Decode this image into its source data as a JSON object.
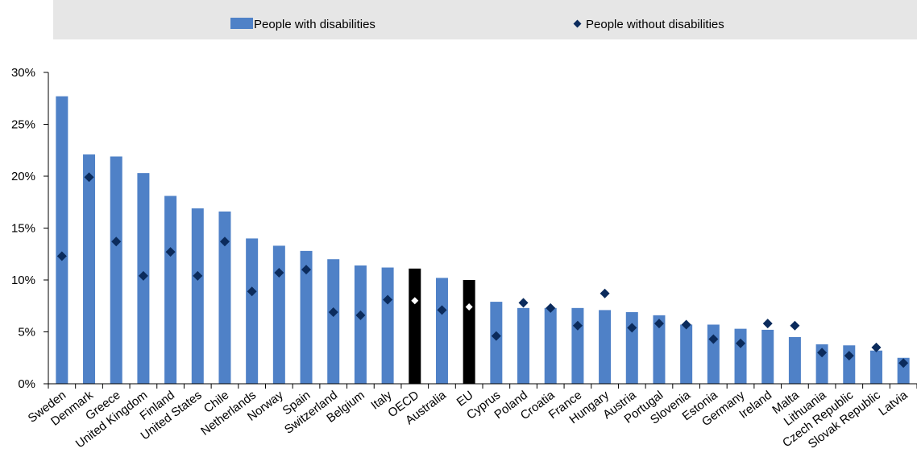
{
  "chart_data": {
    "type": "bar",
    "title": "",
    "xlabel": "",
    "ylabel": "",
    "ylim": [
      0,
      30
    ],
    "y_ticks": [
      "0%",
      "5%",
      "10%",
      "15%",
      "20%",
      "25%",
      "30%"
    ],
    "y_tick_values": [
      0,
      5,
      10,
      15,
      20,
      25,
      30
    ],
    "grid": false,
    "legend_position": "top",
    "categories": [
      "Sweden",
      "Denmark",
      "Greece",
      "United Kingdom",
      "Finland",
      "United States",
      "Chile",
      "Netherlands",
      "Norway",
      "Spain",
      "Switzerland",
      "Belgium",
      "Italy",
      "OECD",
      "Australia",
      "EU",
      "Cyprus",
      "Poland",
      "Croatia",
      "France",
      "Hungary",
      "Austria",
      "Portugal",
      "Slovenia",
      "Estonia",
      "Germany",
      "Ireland",
      "Malta",
      "Lithuania",
      "Czech Republic",
      "Slovak Republic",
      "Latvia"
    ],
    "highlight_categories": [
      "OECD",
      "EU"
    ],
    "series": [
      {
        "name": "People with disabilities",
        "kind": "bar",
        "color": "#4f81c7",
        "highlight_color": "#000000",
        "values": [
          27.7,
          22.1,
          21.9,
          20.3,
          18.1,
          16.9,
          16.6,
          14.0,
          13.3,
          12.8,
          12.0,
          11.4,
          11.2,
          11.1,
          10.2,
          10.0,
          7.9,
          7.3,
          7.3,
          7.3,
          7.1,
          6.9,
          6.6,
          5.7,
          5.7,
          5.3,
          5.2,
          4.5,
          3.8,
          3.7,
          3.2,
          2.5
        ]
      },
      {
        "name": "People without disabilities",
        "kind": "marker",
        "color": "#0b2b5c",
        "highlight_color": "#ffffff",
        "values": [
          12.3,
          19.9,
          13.7,
          10.4,
          12.7,
          10.4,
          13.7,
          8.9,
          10.7,
          11.0,
          6.9,
          6.6,
          8.1,
          8.0,
          7.1,
          7.4,
          4.6,
          7.8,
          7.3,
          5.6,
          8.7,
          5.4,
          5.8,
          5.7,
          4.3,
          3.9,
          5.8,
          5.6,
          3.0,
          2.7,
          3.5,
          2.0
        ]
      }
    ]
  }
}
